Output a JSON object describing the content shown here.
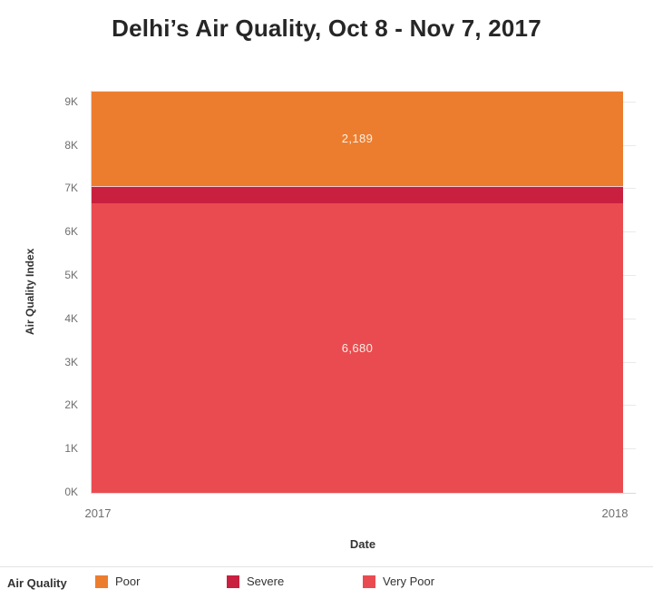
{
  "title": "Delhi’s Air Quality, Oct 8 - Nov 7, 2017",
  "axes": {
    "y_title": "Air Quality Index",
    "x_title": "Date"
  },
  "legend": {
    "title": "Air Quality",
    "items": [
      {
        "label": "Poor",
        "color": "#ed7d2e"
      },
      {
        "label": "Severe",
        "color": "#c9203f"
      },
      {
        "label": "Very Poor",
        "color": "#ea4b50"
      }
    ]
  },
  "chart_data": {
    "type": "area",
    "stacked": true,
    "title": "Delhi’s Air Quality, Oct 8 - Nov 7, 2017",
    "xlabel": "Date",
    "ylabel": "Air Quality Index",
    "x_ticks": [
      "2017",
      "2018"
    ],
    "y_tick_values": [
      0,
      1000,
      2000,
      3000,
      4000,
      5000,
      6000,
      7000,
      8000,
      9000
    ],
    "y_tick_labels": [
      "0K",
      "1K",
      "2K",
      "3K",
      "4K",
      "5K",
      "6K",
      "7K",
      "8K",
      "9K"
    ],
    "ylim": [
      0,
      9269
    ],
    "grid": true,
    "legend_position": "bottom",
    "series": [
      {
        "name": "Very Poor",
        "value": 6680,
        "data_label": "6,680",
        "color": "#ea4b50",
        "estimated": false
      },
      {
        "name": "Severe",
        "value": 400,
        "data_label": "",
        "color": "#c9203f",
        "estimated": true
      },
      {
        "name": "Poor",
        "value": 2189,
        "data_label": "2,189",
        "color": "#ed7d2e",
        "estimated": false
      }
    ]
  }
}
